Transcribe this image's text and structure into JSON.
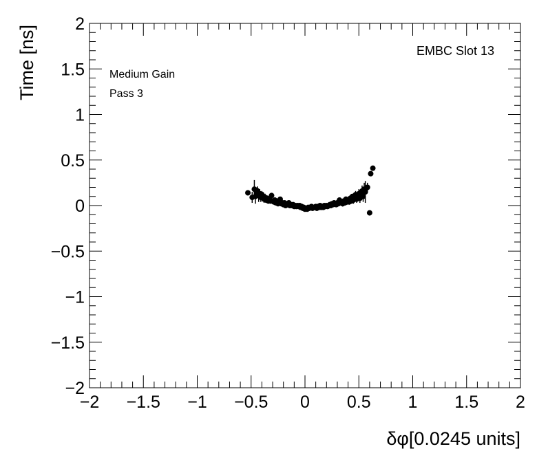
{
  "chart_data": {
    "type": "scatter",
    "xlabel": "δφ[0.0245 units]",
    "ylabel": "Time [ns]",
    "xlim": [
      -2,
      2
    ],
    "ylim": [
      -2,
      2
    ],
    "x_ticks": [
      -2,
      -1.5,
      -1,
      -0.5,
      0,
      0.5,
      1,
      1.5,
      2
    ],
    "y_ticks": [
      -2,
      -1.5,
      -1,
      -0.5,
      0,
      0.5,
      1,
      1.5,
      2
    ],
    "x_tick_labels": [
      "−2",
      "−1.5",
      "−1",
      "−0.5",
      "0",
      "0.5",
      "1",
      "1.5",
      "2"
    ],
    "y_tick_labels": [
      "−2",
      "−1.5",
      "−1",
      "−0.5",
      "0",
      "0.5",
      "1",
      "1.5",
      "2"
    ],
    "grid": false,
    "legend": "none",
    "marker_color": "#000000",
    "annotations": {
      "top_right": "EMBC Slot 13",
      "line1": "Medium Gain",
      "line2": "Pass 3"
    },
    "points": [
      {
        "x": -0.53,
        "y": 0.14,
        "err": 0.0
      },
      {
        "x": -0.49,
        "y": 0.09,
        "err": 0.06
      },
      {
        "x": -0.47,
        "y": 0.18,
        "err": 0.1
      },
      {
        "x": -0.46,
        "y": 0.1,
        "err": 0.08
      },
      {
        "x": -0.45,
        "y": 0.14,
        "err": 0.06
      },
      {
        "x": -0.44,
        "y": 0.16,
        "err": 0.05
      },
      {
        "x": -0.43,
        "y": 0.11,
        "err": 0.07
      },
      {
        "x": -0.42,
        "y": 0.13,
        "err": 0.05
      },
      {
        "x": -0.41,
        "y": 0.09,
        "err": 0.05
      },
      {
        "x": -0.4,
        "y": 0.12,
        "err": 0.04
      },
      {
        "x": -0.39,
        "y": 0.1,
        "err": 0.05
      },
      {
        "x": -0.38,
        "y": 0.07,
        "err": 0.04
      },
      {
        "x": -0.37,
        "y": 0.09,
        "err": 0.04
      },
      {
        "x": -0.36,
        "y": 0.06,
        "err": 0.03
      },
      {
        "x": -0.35,
        "y": 0.08,
        "err": 0.03
      },
      {
        "x": -0.34,
        "y": 0.05,
        "err": 0.03
      },
      {
        "x": -0.33,
        "y": 0.07,
        "err": 0.03
      },
      {
        "x": -0.32,
        "y": 0.05,
        "err": 0.03
      },
      {
        "x": -0.31,
        "y": 0.11,
        "err": 0.03
      },
      {
        "x": -0.3,
        "y": 0.05,
        "err": 0.03
      },
      {
        "x": -0.29,
        "y": 0.04,
        "err": 0.02
      },
      {
        "x": -0.28,
        "y": 0.06,
        "err": 0.02
      },
      {
        "x": -0.27,
        "y": 0.03,
        "err": 0.02
      },
      {
        "x": -0.26,
        "y": 0.05,
        "err": 0.02
      },
      {
        "x": -0.25,
        "y": 0.02,
        "err": 0.02
      },
      {
        "x": -0.24,
        "y": 0.04,
        "err": 0.02
      },
      {
        "x": -0.23,
        "y": 0.07,
        "err": 0.02
      },
      {
        "x": -0.22,
        "y": 0.02,
        "err": 0.02
      },
      {
        "x": -0.21,
        "y": 0.03,
        "err": 0.02
      },
      {
        "x": -0.2,
        "y": 0.01,
        "err": 0.02
      },
      {
        "x": -0.19,
        "y": 0.03,
        "err": 0.02
      },
      {
        "x": -0.18,
        "y": 0.0,
        "err": 0.02
      },
      {
        "x": -0.17,
        "y": 0.02,
        "err": 0.02
      },
      {
        "x": -0.16,
        "y": 0.01,
        "err": 0.02
      },
      {
        "x": -0.15,
        "y": 0.03,
        "err": 0.02
      },
      {
        "x": -0.14,
        "y": 0.0,
        "err": 0.02
      },
      {
        "x": -0.13,
        "y": 0.01,
        "err": 0.02
      },
      {
        "x": -0.12,
        "y": 0.0,
        "err": 0.02
      },
      {
        "x": -0.11,
        "y": 0.01,
        "err": 0.02
      },
      {
        "x": -0.1,
        "y": -0.01,
        "err": 0.02
      },
      {
        "x": -0.09,
        "y": 0.0,
        "err": 0.02
      },
      {
        "x": -0.08,
        "y": -0.01,
        "err": 0.02
      },
      {
        "x": -0.07,
        "y": 0.0,
        "err": 0.02
      },
      {
        "x": -0.06,
        "y": -0.01,
        "err": 0.02
      },
      {
        "x": -0.05,
        "y": 0.0,
        "err": 0.02
      },
      {
        "x": -0.04,
        "y": -0.02,
        "err": 0.02
      },
      {
        "x": -0.03,
        "y": -0.01,
        "err": 0.02
      },
      {
        "x": -0.02,
        "y": -0.03,
        "err": 0.02
      },
      {
        "x": -0.01,
        "y": -0.02,
        "err": 0.02
      },
      {
        "x": 0.0,
        "y": -0.04,
        "err": 0.02
      },
      {
        "x": 0.01,
        "y": -0.03,
        "err": 0.02
      },
      {
        "x": 0.02,
        "y": -0.04,
        "err": 0.02
      },
      {
        "x": 0.03,
        "y": -0.02,
        "err": 0.02
      },
      {
        "x": 0.04,
        "y": -0.03,
        "err": 0.02
      },
      {
        "x": 0.05,
        "y": -0.02,
        "err": 0.02
      },
      {
        "x": 0.06,
        "y": -0.01,
        "err": 0.02
      },
      {
        "x": 0.07,
        "y": -0.03,
        "err": 0.02
      },
      {
        "x": 0.08,
        "y": -0.02,
        "err": 0.02
      },
      {
        "x": 0.09,
        "y": -0.02,
        "err": 0.02
      },
      {
        "x": 0.1,
        "y": -0.01,
        "err": 0.02
      },
      {
        "x": 0.11,
        "y": -0.03,
        "err": 0.02
      },
      {
        "x": 0.12,
        "y": -0.01,
        "err": 0.02
      },
      {
        "x": 0.13,
        "y": -0.02,
        "err": 0.02
      },
      {
        "x": 0.14,
        "y": 0.0,
        "err": 0.02
      },
      {
        "x": 0.15,
        "y": -0.02,
        "err": 0.02
      },
      {
        "x": 0.16,
        "y": -0.01,
        "err": 0.02
      },
      {
        "x": 0.17,
        "y": -0.02,
        "err": 0.02
      },
      {
        "x": 0.18,
        "y": 0.0,
        "err": 0.02
      },
      {
        "x": 0.19,
        "y": -0.01,
        "err": 0.02
      },
      {
        "x": 0.2,
        "y": 0.0,
        "err": 0.02
      },
      {
        "x": 0.21,
        "y": -0.01,
        "err": 0.02
      },
      {
        "x": 0.22,
        "y": 0.0,
        "err": 0.02
      },
      {
        "x": 0.23,
        "y": 0.01,
        "err": 0.02
      },
      {
        "x": 0.24,
        "y": 0.0,
        "err": 0.02
      },
      {
        "x": 0.25,
        "y": 0.02,
        "err": 0.02
      },
      {
        "x": 0.26,
        "y": 0.01,
        "err": 0.02
      },
      {
        "x": 0.27,
        "y": 0.03,
        "err": 0.02
      },
      {
        "x": 0.28,
        "y": 0.02,
        "err": 0.02
      },
      {
        "x": 0.29,
        "y": 0.01,
        "err": 0.02
      },
      {
        "x": 0.3,
        "y": 0.03,
        "err": 0.02
      },
      {
        "x": 0.31,
        "y": 0.02,
        "err": 0.02
      },
      {
        "x": 0.32,
        "y": 0.06,
        "err": 0.03
      },
      {
        "x": 0.33,
        "y": 0.03,
        "err": 0.03
      },
      {
        "x": 0.34,
        "y": 0.04,
        "err": 0.03
      },
      {
        "x": 0.35,
        "y": 0.02,
        "err": 0.03
      },
      {
        "x": 0.36,
        "y": 0.05,
        "err": 0.03
      },
      {
        "x": 0.37,
        "y": 0.03,
        "err": 0.03
      },
      {
        "x": 0.38,
        "y": 0.07,
        "err": 0.03
      },
      {
        "x": 0.39,
        "y": 0.04,
        "err": 0.03
      },
      {
        "x": 0.4,
        "y": 0.06,
        "err": 0.03
      },
      {
        "x": 0.41,
        "y": 0.04,
        "err": 0.03
      },
      {
        "x": 0.42,
        "y": 0.08,
        "err": 0.03
      },
      {
        "x": 0.43,
        "y": 0.05,
        "err": 0.03
      },
      {
        "x": 0.44,
        "y": 0.1,
        "err": 0.03
      },
      {
        "x": 0.45,
        "y": 0.06,
        "err": 0.04
      },
      {
        "x": 0.46,
        "y": 0.08,
        "err": 0.04
      },
      {
        "x": 0.47,
        "y": 0.12,
        "err": 0.04
      },
      {
        "x": 0.48,
        "y": 0.07,
        "err": 0.04
      },
      {
        "x": 0.49,
        "y": 0.09,
        "err": 0.04
      },
      {
        "x": 0.5,
        "y": 0.13,
        "err": 0.05
      },
      {
        "x": 0.51,
        "y": 0.08,
        "err": 0.05
      },
      {
        "x": 0.52,
        "y": 0.12,
        "err": 0.05
      },
      {
        "x": 0.53,
        "y": 0.16,
        "err": 0.06
      },
      {
        "x": 0.54,
        "y": 0.1,
        "err": 0.06
      },
      {
        "x": 0.55,
        "y": 0.18,
        "err": 0.07
      },
      {
        "x": 0.56,
        "y": 0.15,
        "err": 0.12
      },
      {
        "x": 0.58,
        "y": 0.2,
        "err": 0.05
      },
      {
        "x": 0.6,
        "y": -0.08,
        "err": 0.0
      },
      {
        "x": 0.61,
        "y": 0.35,
        "err": 0.0
      },
      {
        "x": 0.63,
        "y": 0.41,
        "err": 0.0
      }
    ]
  }
}
